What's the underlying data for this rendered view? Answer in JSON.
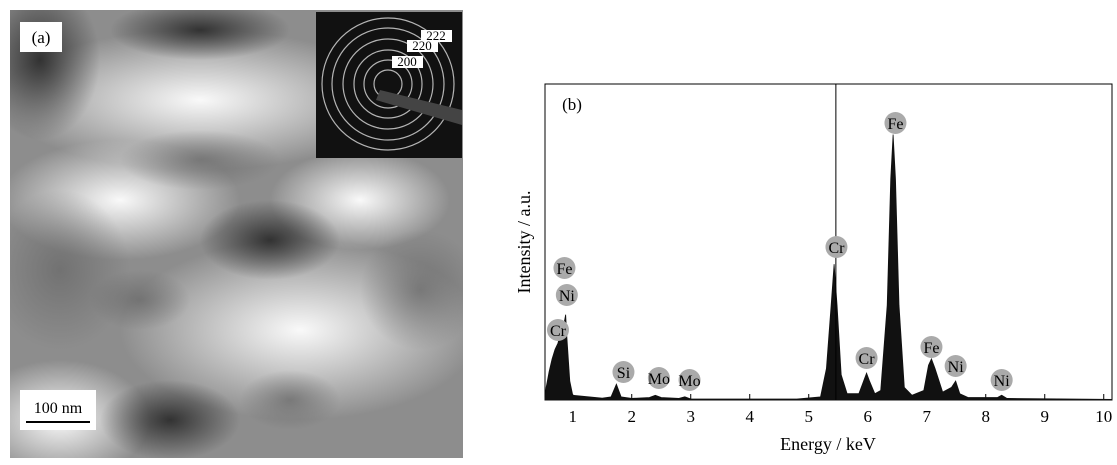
{
  "panel_a": {
    "label": "(a)",
    "scale_bar": "100 nm",
    "inset_labels": [
      "222",
      "220",
      "200"
    ]
  },
  "chart_data": {
    "type": "area",
    "panel_label": "(b)",
    "x_label": "Energy / keV",
    "y_label": "Intensity / a.u.",
    "color": "#111111",
    "x": [
      0.53,
      0.55,
      0.6,
      0.65,
      0.7,
      0.75,
      0.8,
      0.85,
      0.88,
      0.9,
      0.95,
      1.0,
      1.5,
      1.65,
      1.74,
      1.82,
      2.0,
      2.3,
      2.4,
      2.5,
      2.8,
      2.9,
      3.0,
      4.8,
      5.2,
      5.3,
      5.38,
      5.43,
      5.48,
      5.55,
      5.65,
      5.85,
      5.93,
      5.98,
      6.03,
      6.12,
      6.22,
      6.33,
      6.39,
      6.43,
      6.47,
      6.53,
      6.62,
      6.75,
      6.95,
      7.03,
      7.08,
      7.14,
      7.27,
      7.42,
      7.49,
      7.56,
      7.7,
      8.2,
      8.27,
      8.36,
      10.14
    ],
    "values": [
      0,
      4,
      9,
      13,
      16,
      18,
      22,
      24,
      27,
      20,
      6,
      1.5,
      0.6,
      1,
      5,
      1,
      0.5,
      0.8,
      1.5,
      0.8,
      0.5,
      1,
      0.3,
      0.3,
      1,
      10,
      30,
      43,
      30,
      8,
      2,
      2,
      6,
      8.5,
      6,
      2,
      3,
      30,
      70,
      84,
      70,
      30,
      4,
      1.5,
      3,
      11,
      13,
      10,
      2.5,
      4,
      6,
      2,
      0.8,
      0.8,
      1.5,
      0.5,
      0.2
    ],
    "xlim": [
      0.53,
      10.14
    ],
    "ylim": [
      0,
      100
    ],
    "xticks": [
      1,
      2,
      3,
      4,
      5,
      6,
      7,
      8,
      9,
      10
    ],
    "vline_x": 5.46,
    "annotations": [
      {
        "text": "Cr",
        "x": 0.75
      },
      {
        "text": "Fe",
        "x": 0.86
      },
      {
        "text": "Ni",
        "x": 0.9
      },
      {
        "text": "Si",
        "x": 1.86
      },
      {
        "text": "Mo",
        "x": 2.46
      },
      {
        "text": "Mo",
        "x": 2.98
      },
      {
        "text": "Cr",
        "x": 5.47
      },
      {
        "text": "Cr",
        "x": 5.98
      },
      {
        "text": "Fe",
        "x": 6.47
      },
      {
        "text": "Fe",
        "x": 7.08
      },
      {
        "text": "Ni",
        "x": 7.49
      },
      {
        "text": "Ni",
        "x": 8.27
      }
    ]
  }
}
